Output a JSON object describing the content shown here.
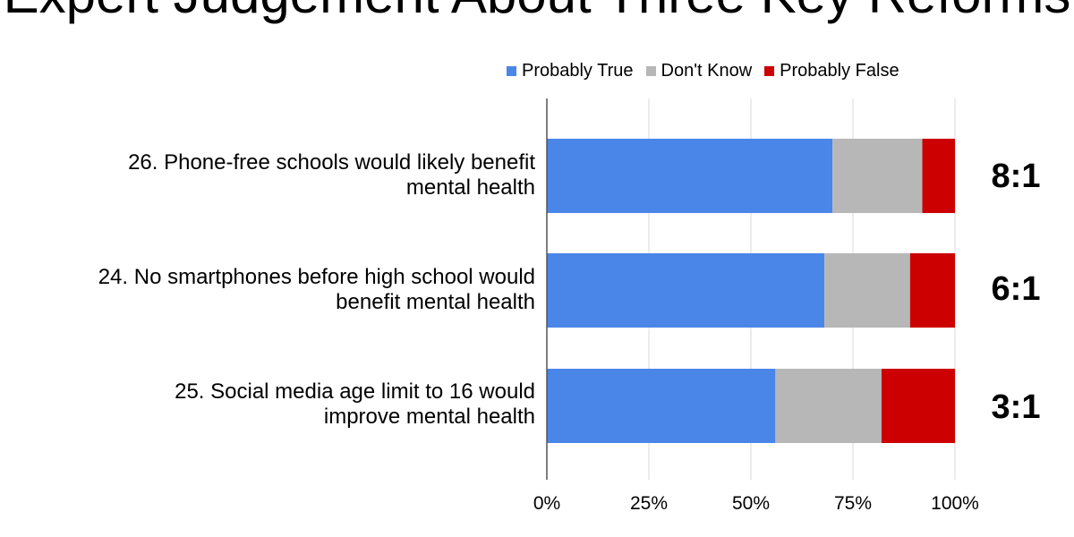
{
  "chart_data": {
    "type": "bar",
    "orientation": "horizontal",
    "stacked": true,
    "title": "Expert Judgement About Three Key Reforms",
    "categories": [
      [
        "26. Phone-free schools would likely benefit",
        "mental health"
      ],
      [
        "24. No smartphones before high school would",
        "benefit mental health"
      ],
      [
        "25. Social media age limit to 16 would",
        "improve mental health"
      ]
    ],
    "series": [
      {
        "name": "Probably True",
        "color": "#4a86e8",
        "values": [
          70,
          68,
          56
        ]
      },
      {
        "name": "Don't Know",
        "color": "#b7b7b7",
        "values": [
          22,
          21,
          26
        ]
      },
      {
        "name": "Probably False",
        "color": "#cc0000",
        "values": [
          8,
          11,
          18
        ]
      }
    ],
    "ratios": [
      "8:1",
      "6:1",
      "3:1"
    ],
    "x_ticks": [
      "0%",
      "25%",
      "50%",
      "75%",
      "100%"
    ],
    "xlim": [
      0,
      100
    ],
    "grid": true,
    "legend_position": "top"
  }
}
